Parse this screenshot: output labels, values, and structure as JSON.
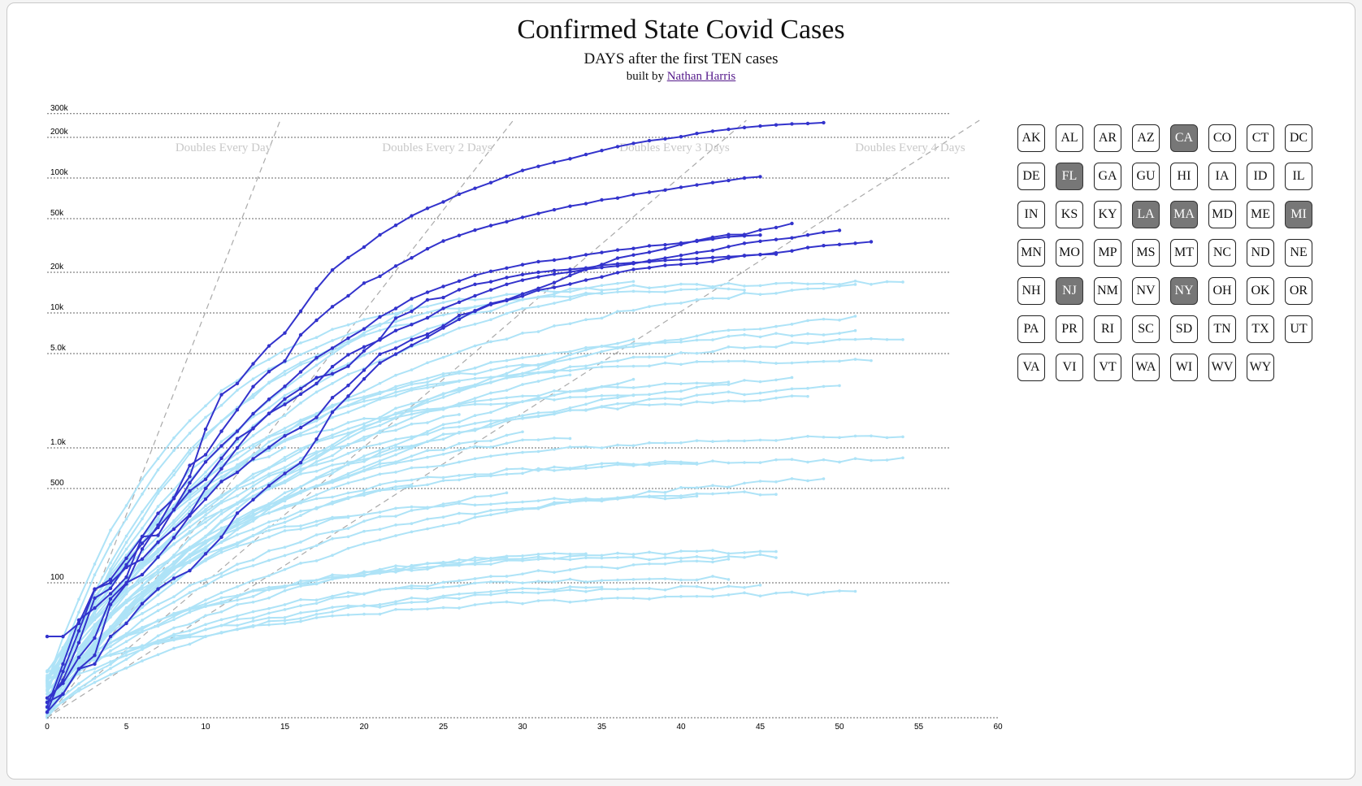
{
  "header": {
    "title": "Confirmed State Covid Cases",
    "subtitle": "DAYS after the first TEN cases",
    "credit_prefix": "built by",
    "credit_link": "Nathan Harris"
  },
  "colors": {
    "selected_line": "#3333cc",
    "unselected_line": "#aee3f7",
    "selected_button_bg": "#777777"
  },
  "chart_data": {
    "type": "line",
    "x_axis": {
      "min": 0,
      "max": 60,
      "ticks": [
        0,
        5,
        10,
        15,
        20,
        25,
        30,
        35,
        40,
        45,
        50,
        55,
        60
      ]
    },
    "y_axis": {
      "scale": "log",
      "min": 10,
      "max": 300000,
      "ticks": [
        100,
        500,
        1000,
        5000,
        10000,
        20000,
        50000,
        100000,
        200000,
        300000
      ],
      "tick_labels": [
        "100",
        "500",
        "1.0k",
        "5.0k",
        "10k",
        "20k",
        "50k",
        "100k",
        "200k",
        "300k"
      ]
    },
    "reference_lines": [
      {
        "label": "Doubles Every Day",
        "doubling_days": 1
      },
      {
        "label": "Doubles Every 2 Days",
        "doubling_days": 2
      },
      {
        "label": "Doubles Every 3 Days",
        "doubling_days": 3
      },
      {
        "label": "Doubles Every 4 Days",
        "doubling_days": 4
      }
    ],
    "grid": "horizontal",
    "highlighted_series": [
      {
        "name": "NY",
        "x": [
          0,
          1,
          2,
          3,
          4,
          5,
          6,
          7,
          8,
          9,
          10,
          11,
          12,
          13,
          14,
          15,
          16,
          17,
          18,
          19,
          20,
          21,
          22,
          23,
          24,
          25,
          26,
          27,
          28,
          29,
          30,
          31,
          32,
          33,
          34,
          35,
          36,
          37,
          38,
          39,
          40,
          41,
          42,
          43,
          44,
          45,
          46,
          47,
          48,
          49
        ],
        "y": [
          11,
          22,
          44,
          89,
          106,
          152,
          220,
          327,
          421,
          613,
          1374,
          2480,
          3000,
          4200,
          5700,
          7100,
          10300,
          15100,
          20800,
          25700,
          30800,
          37900,
          44600,
          52400,
          59600,
          66500,
          75800,
          83900,
          92400,
          102900,
          113700,
          122000,
          130700,
          138800,
          149300,
          159900,
          170800,
          180400,
          189000,
          195000,
          202200,
          213800,
          222300,
          229600,
          236700,
          242700,
          247500,
          251700,
          253500,
          257200
        ]
      },
      {
        "name": "NJ",
        "x": [
          0,
          1,
          2,
          3,
          4,
          5,
          6,
          7,
          8,
          9,
          10,
          11,
          12,
          13,
          14,
          15,
          16,
          17,
          18,
          19,
          20,
          21,
          22,
          23,
          24,
          25,
          26,
          27,
          28,
          29,
          30,
          31,
          32,
          33,
          34,
          35,
          36,
          37,
          38,
          39,
          40,
          41,
          42,
          43,
          44,
          45
        ],
        "y": [
          11,
          15,
          23,
          29,
          69,
          98,
          178,
          267,
          427,
          742,
          890,
          1327,
          1914,
          2844,
          3675,
          4402,
          6876,
          8825,
          11124,
          13386,
          16636,
          18696,
          22255,
          25590,
          29895,
          34124,
          37505,
          41090,
          44416,
          47437,
          51027,
          54588,
          58151,
          61850,
          64584,
          68824,
          71030,
          75317,
          78467,
          81420,
          85301,
          88806,
          92387,
          95865,
          99989,
          102196
        ]
      },
      {
        "name": "MA",
        "x": [
          0,
          1,
          2,
          3,
          4,
          5,
          6,
          7,
          8,
          9,
          10,
          11,
          12,
          13,
          14,
          15,
          16,
          17,
          18,
          19,
          20,
          21,
          22,
          23,
          24,
          25,
          26,
          27,
          28,
          29,
          30,
          31,
          32,
          33,
          34,
          35,
          36,
          37,
          38,
          39,
          40,
          41,
          42,
          43,
          44,
          45,
          46,
          47
        ],
        "y": [
          13,
          15,
          23,
          25,
          40,
          50,
          70,
          90,
          108,
          123,
          164,
          218,
          328,
          413,
          525,
          646,
          777,
          1159,
          1838,
          2417,
          3240,
          4257,
          4955,
          5752,
          6620,
          7738,
          8966,
          10402,
          11736,
          12500,
          13837,
          15202,
          16790,
          18941,
          20974,
          22860,
          25475,
          26867,
          28163,
          29918,
          32181,
          34402,
          36372,
          38077,
          38077,
          41199,
          42944,
          46023
        ]
      },
      {
        "name": "CA",
        "x": [
          0,
          1,
          2,
          3,
          4,
          5,
          6,
          7,
          8,
          9,
          10,
          11,
          12,
          13,
          14,
          15,
          16,
          17,
          18,
          19,
          20,
          21,
          22,
          23,
          24,
          25,
          26,
          27,
          28,
          29,
          30,
          31,
          32,
          33,
          34,
          35,
          36,
          37,
          38,
          39,
          40,
          41,
          42,
          43,
          44,
          45,
          46,
          47,
          48,
          49,
          50
        ],
        "y": [
          40,
          40,
          50,
          90,
          100,
          130,
          150,
          200,
          250,
          320,
          500,
          700,
          1000,
          1400,
          1800,
          2100,
          2500,
          3000,
          4000,
          4900,
          5600,
          6300,
          7400,
          8200,
          9200,
          10800,
          12000,
          13400,
          14800,
          16300,
          17500,
          18500,
          19400,
          20100,
          21000,
          21700,
          22300,
          23200,
          24400,
          25500,
          26700,
          28000,
          29000,
          31000,
          32800,
          34000,
          35000,
          36000,
          37800,
          39600,
          40900
        ]
      },
      {
        "name": "MI",
        "x": [
          0,
          1,
          2,
          3,
          4,
          5,
          6,
          7,
          8,
          9,
          10,
          11,
          12,
          13,
          14,
          15,
          16,
          17,
          18,
          19,
          20,
          21,
          22,
          23,
          24,
          25,
          26,
          27,
          28,
          29,
          30,
          31,
          32,
          33,
          34,
          35,
          36,
          37,
          38,
          39,
          40,
          41,
          42,
          43,
          44,
          45
        ],
        "y": [
          12,
          25,
          53,
          65,
          83,
          110,
          220,
          225,
          350,
          550,
          787,
          1035,
          1328,
          1791,
          2294,
          2856,
          3657,
          4650,
          5486,
          6498,
          7615,
          9334,
          10791,
          12744,
          14225,
          15718,
          17221,
          18970,
          20346,
          21504,
          22783,
          23993,
          24638,
          25635,
          27001,
          28059,
          29263,
          30023,
          31424,
          32000,
          32967,
          33966,
          35291,
          36641,
          37203,
          37778
        ]
      },
      {
        "name": "FL",
        "x": [
          0,
          1,
          2,
          3,
          4,
          5,
          6,
          7,
          8,
          9,
          10,
          11,
          12,
          13,
          14,
          15,
          16,
          17,
          18,
          19,
          20,
          21,
          22,
          23,
          24,
          25,
          26,
          27,
          28,
          29,
          30,
          31,
          32,
          33,
          34,
          35,
          36,
          37,
          38,
          39,
          40,
          41,
          42,
          43,
          44,
          45,
          46,
          47,
          48,
          49,
          50,
          51,
          52
        ],
        "y": [
          14,
          18,
          28,
          39,
          76,
          100,
          115,
          155,
          216,
          314,
          417,
          563,
          658,
          830,
          1007,
          1227,
          1412,
          1682,
          2355,
          2900,
          3763,
          4950,
          5473,
          6338,
          6955,
          8010,
          9585,
          10268,
          11545,
          12350,
          13324,
          14747,
          15455,
          16364,
          17531,
          18494,
          19895,
          21019,
          21628,
          22519,
          22897,
          23340,
          24119,
          25492,
          26660,
          27058,
          27869,
          28832,
          30533,
          31528,
          32138,
          32846,
          33690
        ]
      },
      {
        "name": "LA",
        "x": [
          0,
          1,
          2,
          3,
          4,
          5,
          6,
          7,
          8,
          9,
          10,
          11,
          12,
          13,
          14,
          15,
          16,
          17,
          18,
          19,
          20,
          21,
          22,
          23,
          24,
          25,
          26,
          27,
          28,
          29,
          30,
          31,
          32,
          33,
          34,
          35,
          36,
          37,
          38,
          39,
          40,
          41,
          42,
          43,
          44,
          45,
          46
        ],
        "y": [
          13,
          19,
          36,
          77,
          91,
          136,
          196,
          257,
          347,
          479,
          585,
          837,
          1172,
          1388,
          1795,
          2305,
          2746,
          3315,
          3540,
          4025,
          5237,
          6424,
          9150,
          10297,
          12496,
          13010,
          14867,
          16284,
          17030,
          18283,
          19253,
          20014,
          20595,
          21016,
          21518,
          22532,
          23118,
          23580,
          23928,
          24523,
          24854,
          25258,
          25739,
          26140,
          26512,
          27068,
          27286
        ]
      }
    ]
  },
  "states": [
    {
      "code": "AK",
      "on": false
    },
    {
      "code": "AL",
      "on": false
    },
    {
      "code": "AR",
      "on": false
    },
    {
      "code": "AZ",
      "on": false
    },
    {
      "code": "CA",
      "on": true
    },
    {
      "code": "CO",
      "on": false
    },
    {
      "code": "CT",
      "on": false
    },
    {
      "code": "DC",
      "on": false
    },
    {
      "code": "DE",
      "on": false
    },
    {
      "code": "FL",
      "on": true
    },
    {
      "code": "GA",
      "on": false
    },
    {
      "code": "GU",
      "on": false
    },
    {
      "code": "HI",
      "on": false
    },
    {
      "code": "IA",
      "on": false
    },
    {
      "code": "ID",
      "on": false
    },
    {
      "code": "IL",
      "on": false
    },
    {
      "code": "IN",
      "on": false
    },
    {
      "code": "KS",
      "on": false
    },
    {
      "code": "KY",
      "on": false
    },
    {
      "code": "LA",
      "on": true
    },
    {
      "code": "MA",
      "on": true
    },
    {
      "code": "MD",
      "on": false
    },
    {
      "code": "ME",
      "on": false
    },
    {
      "code": "MI",
      "on": true
    },
    {
      "code": "MN",
      "on": false
    },
    {
      "code": "MO",
      "on": false
    },
    {
      "code": "MP",
      "on": false
    },
    {
      "code": "MS",
      "on": false
    },
    {
      "code": "MT",
      "on": false
    },
    {
      "code": "NC",
      "on": false
    },
    {
      "code": "ND",
      "on": false
    },
    {
      "code": "NE",
      "on": false
    },
    {
      "code": "NH",
      "on": false
    },
    {
      "code": "NJ",
      "on": true
    },
    {
      "code": "NM",
      "on": false
    },
    {
      "code": "NV",
      "on": false
    },
    {
      "code": "NY",
      "on": true
    },
    {
      "code": "OH",
      "on": false
    },
    {
      "code": "OK",
      "on": false
    },
    {
      "code": "OR",
      "on": false
    },
    {
      "code": "PA",
      "on": false
    },
    {
      "code": "PR",
      "on": false
    },
    {
      "code": "RI",
      "on": false
    },
    {
      "code": "SC",
      "on": false
    },
    {
      "code": "SD",
      "on": false
    },
    {
      "code": "TN",
      "on": false
    },
    {
      "code": "TX",
      "on": false
    },
    {
      "code": "UT",
      "on": false
    },
    {
      "code": "VA",
      "on": false
    },
    {
      "code": "VI",
      "on": false
    },
    {
      "code": "VT",
      "on": false
    },
    {
      "code": "WA",
      "on": false
    },
    {
      "code": "WI",
      "on": false
    },
    {
      "code": "WV",
      "on": false
    },
    {
      "code": "WY",
      "on": false
    }
  ]
}
